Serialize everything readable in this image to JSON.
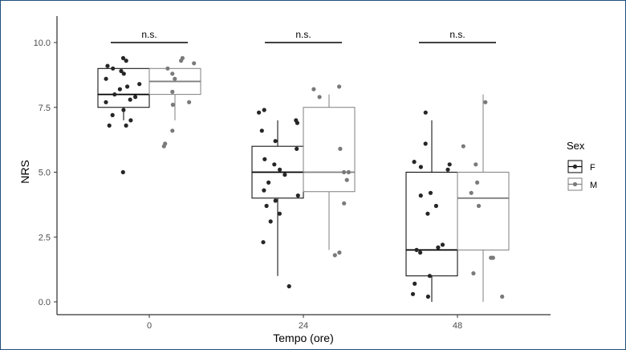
{
  "chart_data": {
    "type": "boxplot",
    "title": "",
    "xlabel": "Tempo (ore)",
    "ylabel": "NRS",
    "ylim": [
      -0.6,
      11
    ],
    "y_ticks": [
      "0.0",
      "2.5",
      "5.0",
      "7.5",
      "10.0"
    ],
    "y_tick_values": [
      0,
      2.5,
      5,
      7.5,
      10
    ],
    "categories": [
      "0",
      "24",
      "48"
    ],
    "grid": false,
    "legend": {
      "title": "Sex",
      "placement": "right",
      "entries": [
        "F",
        "M"
      ]
    },
    "annotations": [
      "n.s.",
      "n.s.",
      "n.s."
    ],
    "series": [
      {
        "name": "F",
        "color": "#000000",
        "point_color": "#262626",
        "boxes": [
          {
            "category": "0",
            "min": 7.0,
            "q1": 7.5,
            "median": 8.0,
            "q3": 9.0,
            "max": 9.0
          },
          {
            "category": "24",
            "min": 1.0,
            "q1": 4.0,
            "median": 5.0,
            "q3": 6.0,
            "max": 7.0
          },
          {
            "category": "48",
            "min": 0.0,
            "q1": 1.0,
            "median": 2.0,
            "q3": 5.0,
            "max": 7.0
          }
        ],
        "points": [
          {
            "category": "0",
            "values": [
              9.4,
              9.3,
              9.1,
              9.0,
              8.9,
              8.8,
              8.6,
              8.4,
              8.3,
              8.2,
              8.0,
              7.9,
              7.8,
              7.7,
              7.4,
              7.2,
              7.0,
              6.8,
              6.8,
              5.0
            ]
          },
          {
            "category": "24",
            "values": [
              7.4,
              7.3,
              7.0,
              6.9,
              6.6,
              6.2,
              5.9,
              5.5,
              5.3,
              5.1,
              4.9,
              4.6,
              4.3,
              4.1,
              3.9,
              3.7,
              3.4,
              3.1,
              2.3,
              0.6
            ]
          },
          {
            "category": "48",
            "values": [
              7.3,
              6.1,
              5.4,
              5.3,
              5.2,
              5.1,
              4.2,
              4.1,
              3.7,
              3.4,
              2.2,
              2.1,
              2.0,
              1.9,
              1.0,
              0.7,
              0.3,
              0.2
            ]
          }
        ]
      },
      {
        "name": "M",
        "color": "#7f7f7f",
        "point_color": "#7a7a7a",
        "boxes": [
          {
            "category": "0",
            "min": 7.0,
            "q1": 8.0,
            "median": 8.5,
            "q3": 9.0,
            "max": 9.0
          },
          {
            "category": "24",
            "min": 2.0,
            "q1": 4.25,
            "median": 5.0,
            "q3": 7.5,
            "max": 8.0
          },
          {
            "category": "48",
            "min": 0.0,
            "q1": 2.0,
            "median": 4.0,
            "q3": 5.0,
            "max": 8.0
          }
        ],
        "points": [
          {
            "category": "0",
            "values": [
              9.4,
              9.3,
              9.2,
              9.0,
              8.8,
              8.6,
              8.1,
              7.7,
              7.6,
              6.6,
              6.1,
              6.0
            ]
          },
          {
            "category": "24",
            "values": [
              8.3,
              8.2,
              7.9,
              5.9,
              5.0,
              5.0,
              4.7,
              3.8,
              1.9,
              1.8
            ]
          },
          {
            "category": "48",
            "values": [
              7.7,
              6.0,
              5.3,
              4.6,
              4.2,
              3.7,
              1.7,
              1.7,
              1.1,
              0.2
            ]
          }
        ]
      }
    ]
  }
}
